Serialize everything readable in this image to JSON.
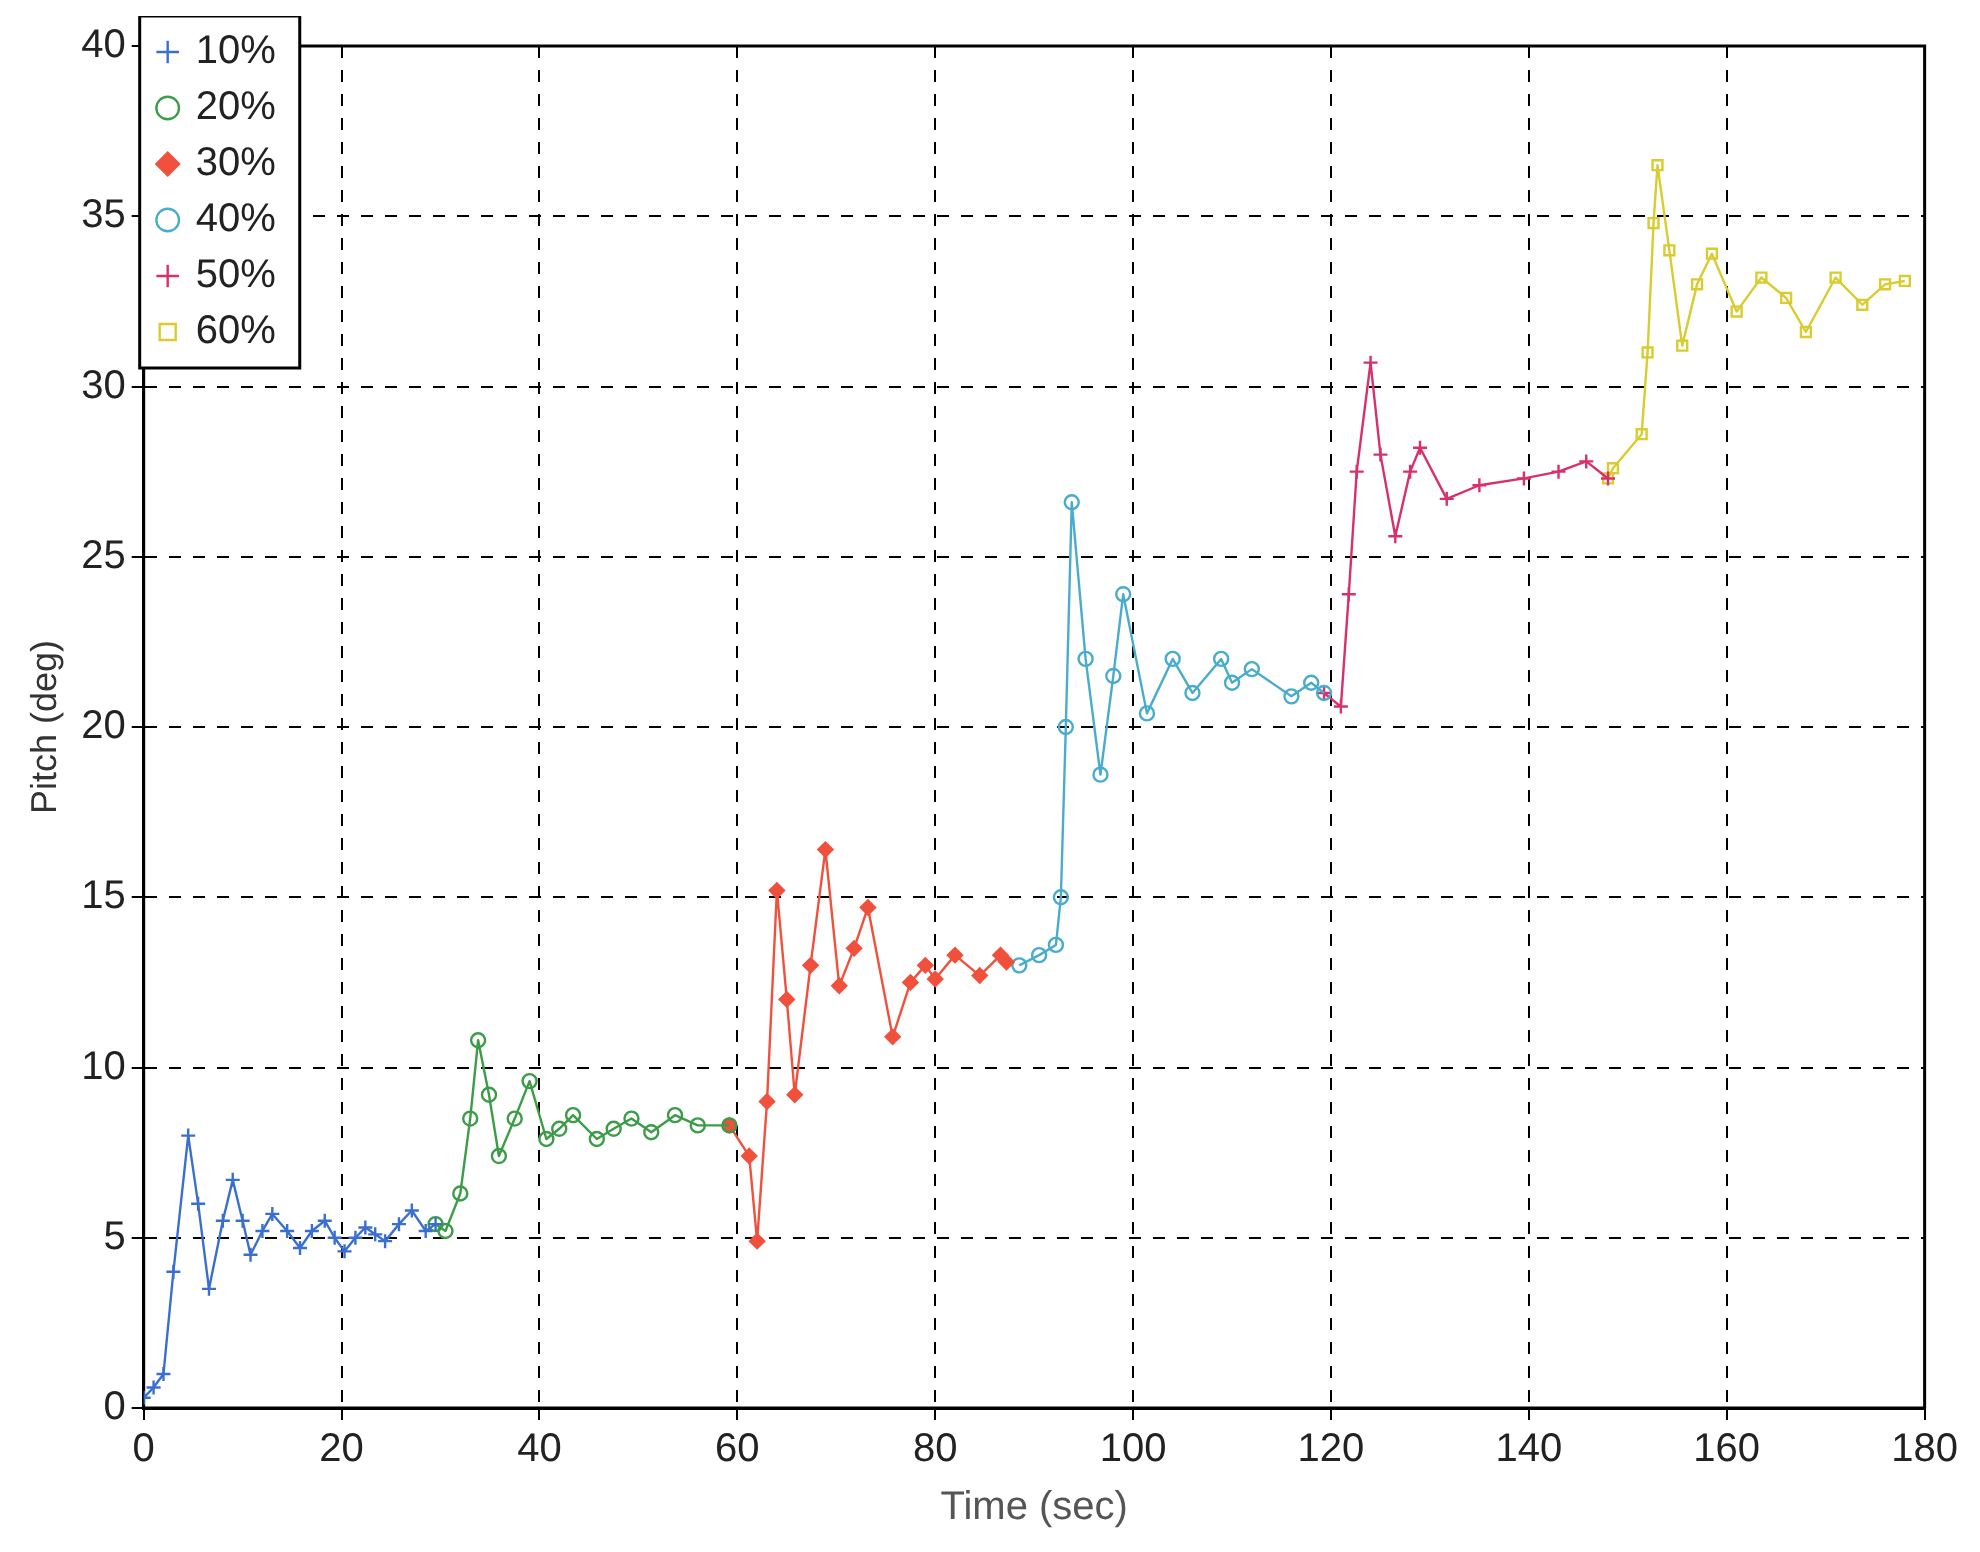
{
  "chart_data": {
    "type": "line",
    "xlabel": "Time (sec)",
    "ylabel": "Pitch (deg)",
    "xlim": [
      0,
      180
    ],
    "xticks": [
      0,
      20,
      40,
      60,
      80,
      100,
      120,
      140,
      160,
      180
    ],
    "ylim": [
      0,
      40
    ],
    "yticks": [
      0,
      5,
      10,
      15,
      20,
      25,
      30,
      35,
      40
    ],
    "grid": true,
    "legend": "top left",
    "line_style": "solid",
    "series": [
      {
        "name": "10%",
        "color": "#3a6fd0",
        "marker": "cross",
        "x": [
          0,
          1,
          2,
          3,
          4.5,
          5.5,
          6.6,
          8,
          9,
          10,
          10.8,
          12,
          13,
          14.5,
          15.8,
          17,
          18.3,
          19.3,
          20.3,
          21.4,
          22.4,
          23.4,
          24.4,
          25.8,
          27.1,
          28.5,
          29.5
        ],
        "values": [
          0.3,
          0.6,
          1,
          4,
          8,
          6,
          3.5,
          5.5,
          6.7,
          5.5,
          4.5,
          5.2,
          5.7,
          5.2,
          4.7,
          5.2,
          5.5,
          5,
          4.6,
          5,
          5.3,
          5.1,
          4.9,
          5.4,
          5.8,
          5.2,
          5.4
        ]
      },
      {
        "name": "20%",
        "color": "#3c9c48",
        "marker": "circle",
        "x": [
          29.5,
          30.5,
          32,
          33,
          33.8,
          34.9,
          35.9,
          37.5,
          39,
          40.7,
          42,
          43.4,
          45.8,
          47.5,
          49.3,
          51.3,
          53.7,
          56,
          59.2
        ],
        "values": [
          5.4,
          5.2,
          6.3,
          8.5,
          10.8,
          9.2,
          7.4,
          8.5,
          9.6,
          7.9,
          8.2,
          8.6,
          7.9,
          8.2,
          8.5,
          8.1,
          8.6,
          8.3,
          8.3
        ]
      },
      {
        "name": "30%",
        "color": "#f0503c",
        "marker": "diamond",
        "x": [
          59.2,
          61.2,
          62,
          63,
          64,
          65,
          65.8,
          67.4,
          68.9,
          70.3,
          71.8,
          73.2,
          75.7,
          77.5,
          79,
          80,
          82,
          84.5,
          86.6,
          87.2
        ],
        "values": [
          8.3,
          7.4,
          4.9,
          9,
          15.2,
          12,
          9.2,
          13,
          16.4,
          12.4,
          13.5,
          14.7,
          10.9,
          12.5,
          13,
          12.6,
          13.3,
          12.7,
          13.3,
          13.1
        ]
      },
      {
        "name": "40%",
        "color": "#4aaccc",
        "marker": "circle",
        "x": [
          88.5,
          90.5,
          92.2,
          92.7,
          93.2,
          93.8,
          95.2,
          96.7,
          98,
          99,
          101.4,
          104,
          106,
          108.9,
          110,
          112,
          116,
          118,
          119.3
        ],
        "values": [
          13,
          13.3,
          13.6,
          15,
          20,
          26.6,
          22,
          18.6,
          21.5,
          23.9,
          20.4,
          22,
          21,
          22,
          21.3,
          21.7,
          20.9,
          21.3,
          21
        ]
      },
      {
        "name": "50%",
        "color": "#d8306c",
        "marker": "cross",
        "x": [
          119.3,
          121,
          121.8,
          122.6,
          124,
          125,
          126.5,
          128,
          129,
          131.7,
          135,
          139.5,
          143,
          145.8,
          148
        ],
        "values": [
          21,
          20.6,
          23.9,
          27.5,
          30.7,
          28,
          25.6,
          27.5,
          28.2,
          26.7,
          27.1,
          27.3,
          27.5,
          27.8,
          27.3
        ]
      },
      {
        "name": "60%",
        "color": "#d8cc30",
        "marker": "square",
        "x": [
          148,
          148.5,
          151.4,
          152,
          152.6,
          153,
          154.2,
          155.5,
          157,
          158.5,
          161,
          163.5,
          166,
          168,
          171,
          173.7,
          176,
          178
        ],
        "values": [
          27.3,
          27.6,
          28.6,
          31,
          34.8,
          36.5,
          34,
          31.2,
          33,
          33.9,
          32.2,
          33.2,
          32.6,
          31.6,
          33.2,
          32.4,
          33,
          33.1
        ]
      }
    ]
  }
}
